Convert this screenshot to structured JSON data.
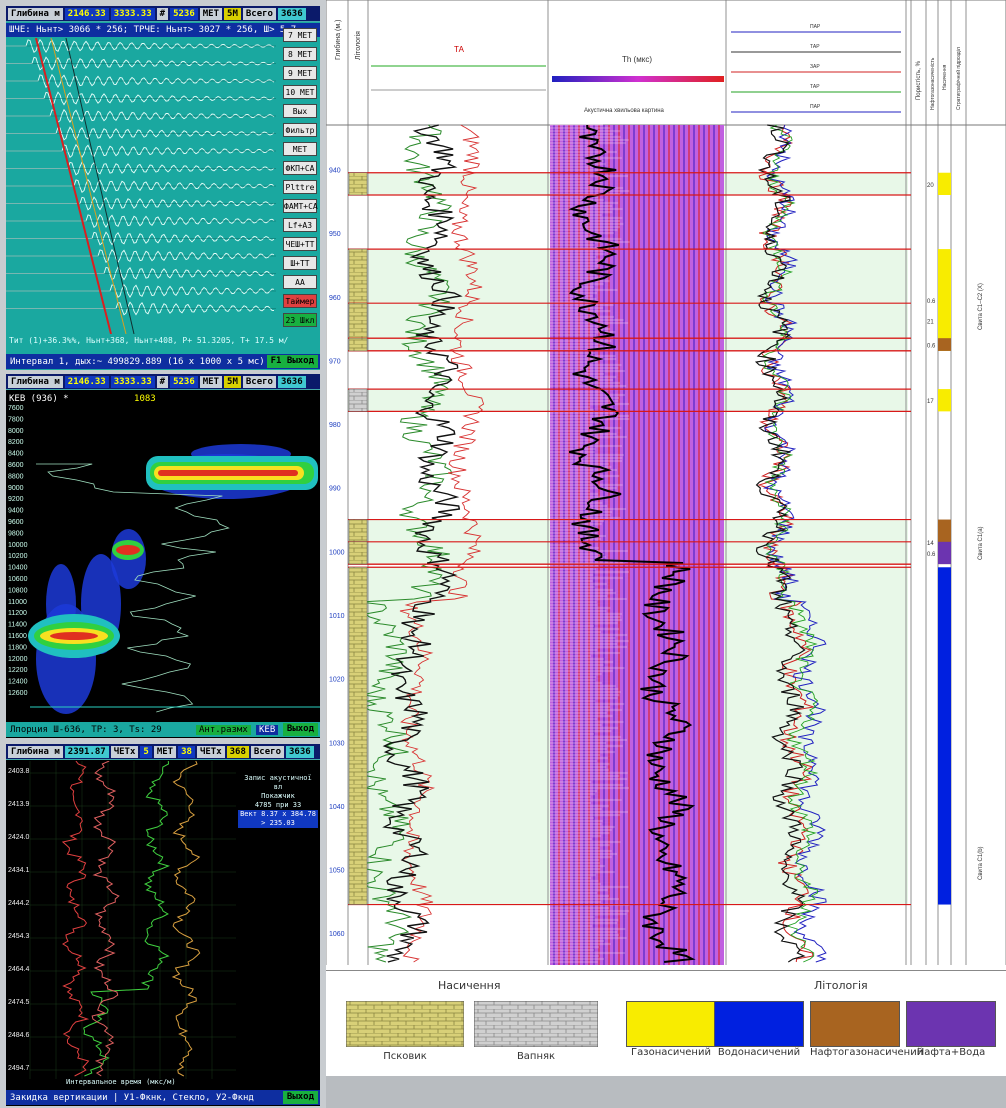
{
  "panel1": {
    "toolbar": [
      {
        "label": "Глибина м",
        "value": "2146.33"
      },
      {
        "label": "",
        "value": "3333.33"
      },
      {
        "label": "#",
        "value": "5236"
      },
      {
        "label": "МЕТ",
        "value": "5М"
      },
      {
        "label": "Всего",
        "value": "3636"
      }
    ],
    "info_line": "ШЧЕ: Ньнт> 3066 * 256; ТРЧЕ: Ньнт> 3027 * 256, Ш> 5.7",
    "side_buttons": [
      "7 МЕТ",
      "8 МЕТ",
      "9 МЕТ",
      "10 МЕТ",
      "Вых",
      "Фильтр",
      "МЕТ",
      "ФКП+СА",
      "Рlttre",
      "ФАМТ+СА",
      "Lf+А3",
      "ЧЕШ+ТТ",
      "Ш+ТТ",
      "АА",
      "Таймер",
      "23 Шкл"
    ],
    "bottom_info": "Тит (1)+36.3%%, Ньнт+368, Ньнт+408, Р+ 51.3205, Т+ 17.5 м/с",
    "status": "Интервал 1, дых:~ 499829.889 (16 х 1000 х 5 мс)",
    "status_button": "F1 Выход"
  },
  "panel2": {
    "toolbar": [
      {
        "label": "Глибина м",
        "value": "2146.33"
      },
      {
        "label": "",
        "value": "3333.33"
      },
      {
        "label": "#",
        "value": "5236"
      },
      {
        "label": "МЕТ",
        "value": "5М"
      },
      {
        "label": "Всего",
        "value": "3636"
      }
    ],
    "header": "КЕВ (936) *",
    "header_value": "1083",
    "depth_ticks": [
      "7600",
      "7800",
      "8000",
      "8200",
      "8400",
      "8600",
      "8800",
      "9000",
      "9200",
      "9400",
      "9600",
      "9800",
      "10000",
      "10200",
      "10400",
      "10600",
      "10800",
      "11000",
      "11200",
      "11400",
      "11600",
      "11800",
      "12000",
      "12200",
      "12400",
      "12600"
    ],
    "status": "Лпорция Ш-636, ТР: 3, Ts: 29",
    "status_mid": "Ант.размх",
    "status_button_a": "КЕВ",
    "status_button_b": "Выход"
  },
  "panel3": {
    "toolbar": [
      {
        "label": "Глибина м",
        "value": "2391.87"
      },
      {
        "label": "ЧЕТх",
        "value": "5"
      },
      {
        "label": "МЕТ",
        "value": "38"
      },
      {
        "label": "ЧЕТх",
        "value": "368"
      },
      {
        "label": "Всего",
        "value": "3636"
      }
    ],
    "legend_lines": [
      "Запис акустичної вл",
      "Покажчик",
      "4785 при 33",
      "Вект 8.37 x 384.78",
      "> 235.03"
    ],
    "depth_labels": [
      "2403.8",
      "2413.9",
      "2424.0",
      "2434.1",
      "2444.2",
      "2454.3",
      "2464.4",
      "2474.5",
      "2484.6",
      "2494.7"
    ],
    "x_label": "Интервальное время (мкс/м)",
    "status": "Закидка вертикации | У1-Фкнк, Стекло, У2-Фкнд",
    "status_button": "Выход"
  },
  "log": {
    "header_columns": [
      "Глибина (м.)",
      "Літологія",
      "",
      "",
      "",
      "Пористість, %",
      "Нафтогазонасиченість",
      "Насичення",
      "Стратиграфічний підрозділ"
    ],
    "track2_title": "ТА",
    "track3_title": "Th (мкс)",
    "track3_subtitle": "Акустична хвильова картина",
    "track4_labels": [
      "ПАР",
      "ТАР",
      "ЗАР",
      "ТАР",
      "ПАР"
    ],
    "depth_ticks": [
      "940",
      "950",
      "960",
      "970",
      "980",
      "990",
      "1000",
      "1010",
      "1020",
      "1030",
      "1040",
      "1050",
      "1060"
    ],
    "porosity_values": [
      "20",
      "0.6",
      "21",
      "0.6",
      "17",
      "14",
      "0.6",
      "",
      "18"
    ],
    "intervals": [
      {
        "top": 940.5,
        "bottom": 944.0,
        "lith": "limestone",
        "sat": "gas"
      },
      {
        "top": 952.5,
        "bottom": 968.5,
        "lith": "limestone",
        "sat": "gas"
      },
      {
        "top": 961.0,
        "bottom": 966.5,
        "lith": "limestone",
        "sat": "gas"
      },
      {
        "top": 966.5,
        "bottom": 968.5,
        "lith": "limestone",
        "sat": "oilgas"
      },
      {
        "top": 974.5,
        "bottom": 978.0,
        "lith": "clay",
        "sat": "gas"
      },
      {
        "top": 995.0,
        "bottom": 1002.0,
        "lith": "limestone",
        "sat": "oilgas"
      },
      {
        "top": 998.5,
        "bottom": 1002.0,
        "lith": "limestone",
        "sat": "oilwater"
      },
      {
        "top": 1002.5,
        "bottom": 1055.5,
        "lith": "limestone",
        "sat": "water"
      }
    ],
    "strat_labels": [
      "Свита С1–С2 (Х)",
      "Свита С1(а)",
      "Свита С1(b)"
    ]
  },
  "legend": {
    "title_left": "Насичення",
    "title_right": "Літологія",
    "items_left": [
      {
        "label": "Псковик",
        "color": "#d8d078",
        "pattern": "brick"
      },
      {
        "label": "Вапняк",
        "color": "#cccccc",
        "pattern": "brick"
      }
    ],
    "items_right": [
      {
        "label": "Газонасичений",
        "color": "#f8ec00"
      },
      {
        "label": "Водонасичений",
        "color": "#0020e0"
      },
      {
        "label": "Нафтогазонасичений",
        "color": "#a86420"
      },
      {
        "label": "Нафта+Вода",
        "color": "#6c34b0"
      }
    ]
  },
  "colors": {
    "panel1_bg": "#1aa8a0",
    "panel2_bg": "#000000",
    "panel3_bg": "#000000",
    "log_bg": "#ffffff",
    "gas": "#f8ec00",
    "water": "#0020e0",
    "oilgas": "#a86420",
    "oilwater": "#6c34b0",
    "interval_line": "#d81818"
  }
}
